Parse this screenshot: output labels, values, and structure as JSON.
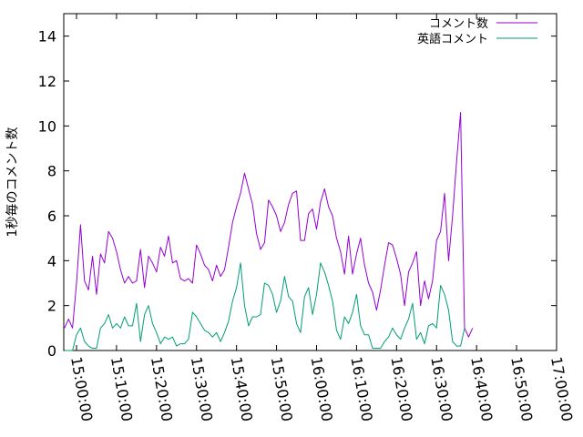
{
  "chart_data": {
    "type": "line",
    "ylabel": "1秒毎のコメント数",
    "xlabel": "",
    "title": "",
    "ylim": [
      0,
      15
    ],
    "yticks": [
      0,
      2,
      4,
      6,
      8,
      10,
      12,
      14
    ],
    "xticks": [
      "15:00:00",
      "15:10:00",
      "15:20:00",
      "15:30:00",
      "15:40:00",
      "15:50:00",
      "16:00:00",
      "16:10:00",
      "16:20:00",
      "16:30:00",
      "16:40:00",
      "16:50:00",
      "17:00:00"
    ],
    "grid": false,
    "legend_position": "top-right",
    "x_start": "14:57:00",
    "x_step": "1 minute",
    "series": [
      {
        "name": "コメント数",
        "color": "#9400d3",
        "values": [
          1.0,
          1.4,
          1.0,
          3.0,
          5.6,
          3.1,
          2.7,
          4.2,
          2.5,
          4.3,
          3.9,
          5.3,
          5.0,
          4.4,
          3.6,
          3.0,
          3.3,
          3.0,
          3.1,
          4.5,
          2.8,
          4.2,
          3.9,
          3.5,
          4.6,
          4.2,
          5.1,
          3.9,
          4.0,
          3.2,
          3.1,
          3.2,
          3.0,
          4.7,
          4.3,
          3.8,
          3.6,
          3.1,
          3.8,
          3.3,
          3.6,
          4.6,
          5.7,
          6.4,
          7.0,
          7.9,
          7.2,
          6.5,
          5.2,
          4.5,
          4.8,
          6.7,
          6.4,
          6.0,
          5.3,
          5.7,
          6.5,
          7.0,
          7.1,
          4.9,
          4.9,
          6.1,
          6.3,
          5.4,
          6.6,
          7.2,
          6.4,
          6.0,
          5.0,
          4.4,
          3.4,
          5.1,
          3.4,
          4.3,
          5.0,
          3.8,
          3.0,
          2.6,
          1.8,
          2.7,
          3.8,
          4.8,
          4.7,
          4.1,
          3.4,
          2.0,
          3.5,
          3.9,
          4.4,
          2.0,
          3.1,
          2.3,
          3.1,
          4.9,
          5.3,
          7.0,
          4.0,
          6.0,
          8.4,
          10.6,
          1.0,
          0.6,
          1.0
        ],
        "x": null
      },
      {
        "name": "英語コメント",
        "color": "#009e73",
        "values": [
          0.0,
          0.0,
          0.0,
          0.7,
          1.0,
          0.4,
          0.2,
          0.1,
          0.1,
          1.0,
          1.2,
          1.6,
          1.0,
          1.2,
          1.0,
          1.5,
          1.1,
          1.1,
          2.1,
          0.4,
          1.6,
          2.0,
          1.2,
          0.8,
          0.3,
          0.6,
          0.5,
          0.6,
          0.2,
          0.3,
          0.3,
          0.5,
          1.7,
          1.5,
          1.2,
          0.9,
          0.8,
          0.6,
          0.8,
          0.4,
          0.8,
          1.3,
          2.2,
          2.8,
          3.9,
          2.0,
          1.1,
          1.5,
          1.5,
          1.6,
          3.0,
          2.9,
          2.5,
          1.7,
          2.2,
          3.3,
          2.4,
          2.2,
          1.2,
          0.8,
          2.4,
          2.8,
          1.6,
          2.5,
          3.9,
          3.5,
          2.9,
          2.2,
          0.9,
          0.5,
          1.5,
          1.2,
          1.7,
          2.5,
          1.1,
          0.7,
          0.7,
          0.1,
          0.1,
          0.1,
          0.4,
          0.6,
          1.0,
          0.7,
          0.5,
          1.0,
          1.4,
          2.1,
          0.5,
          0.8,
          0.3,
          1.1,
          1.2,
          1.0,
          2.9,
          2.5,
          1.8,
          0.4,
          0.2,
          0.2,
          1.0
        ]
      }
    ]
  }
}
